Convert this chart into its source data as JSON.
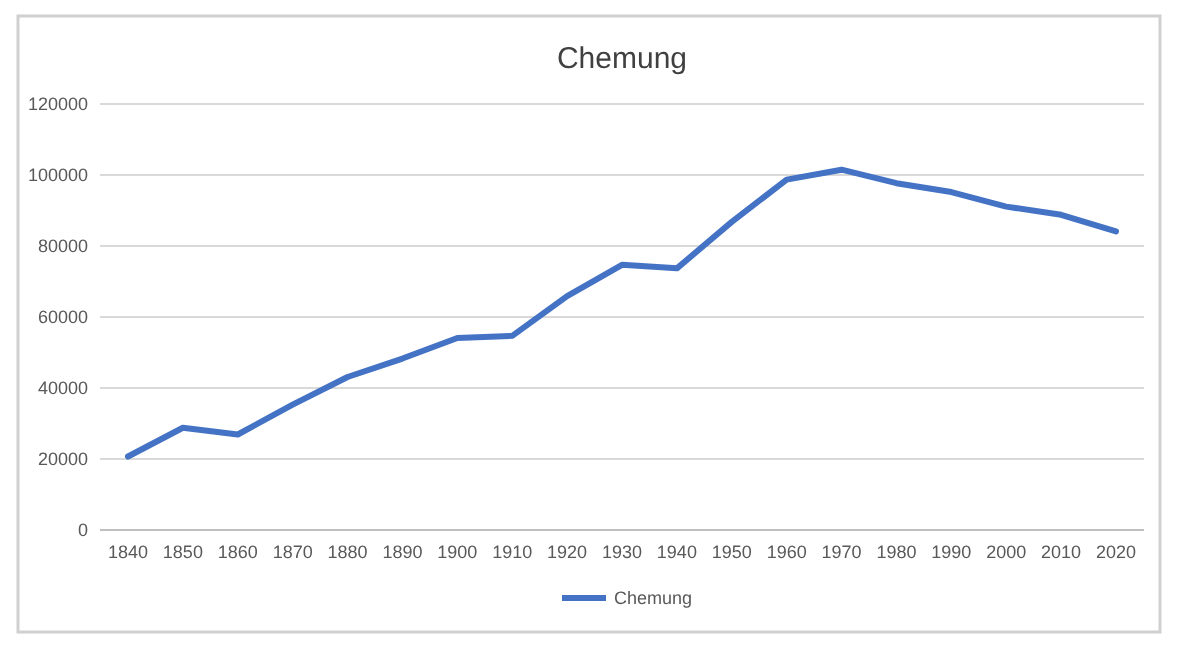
{
  "chart_data": {
    "type": "line",
    "title": "Chemung",
    "categories": [
      "1840",
      "1850",
      "1860",
      "1870",
      "1880",
      "1890",
      "1900",
      "1910",
      "1920",
      "1930",
      "1940",
      "1950",
      "1960",
      "1970",
      "1980",
      "1990",
      "2000",
      "2010",
      "2020"
    ],
    "series": [
      {
        "name": "Chemung",
        "color": "#4472c4",
        "values": [
          20700,
          28800,
          26900,
          35300,
          43100,
          48300,
          54100,
          54700,
          65900,
          74700,
          73700,
          86800,
          98700,
          101500,
          97700,
          95200,
          91100,
          88800,
          84100
        ]
      }
    ],
    "ylim": [
      0,
      120000
    ],
    "yticks": [
      0,
      20000,
      40000,
      60000,
      80000,
      100000,
      120000
    ],
    "grid": "y",
    "legend": "bottom",
    "marker": "none",
    "line_style": "solid"
  }
}
